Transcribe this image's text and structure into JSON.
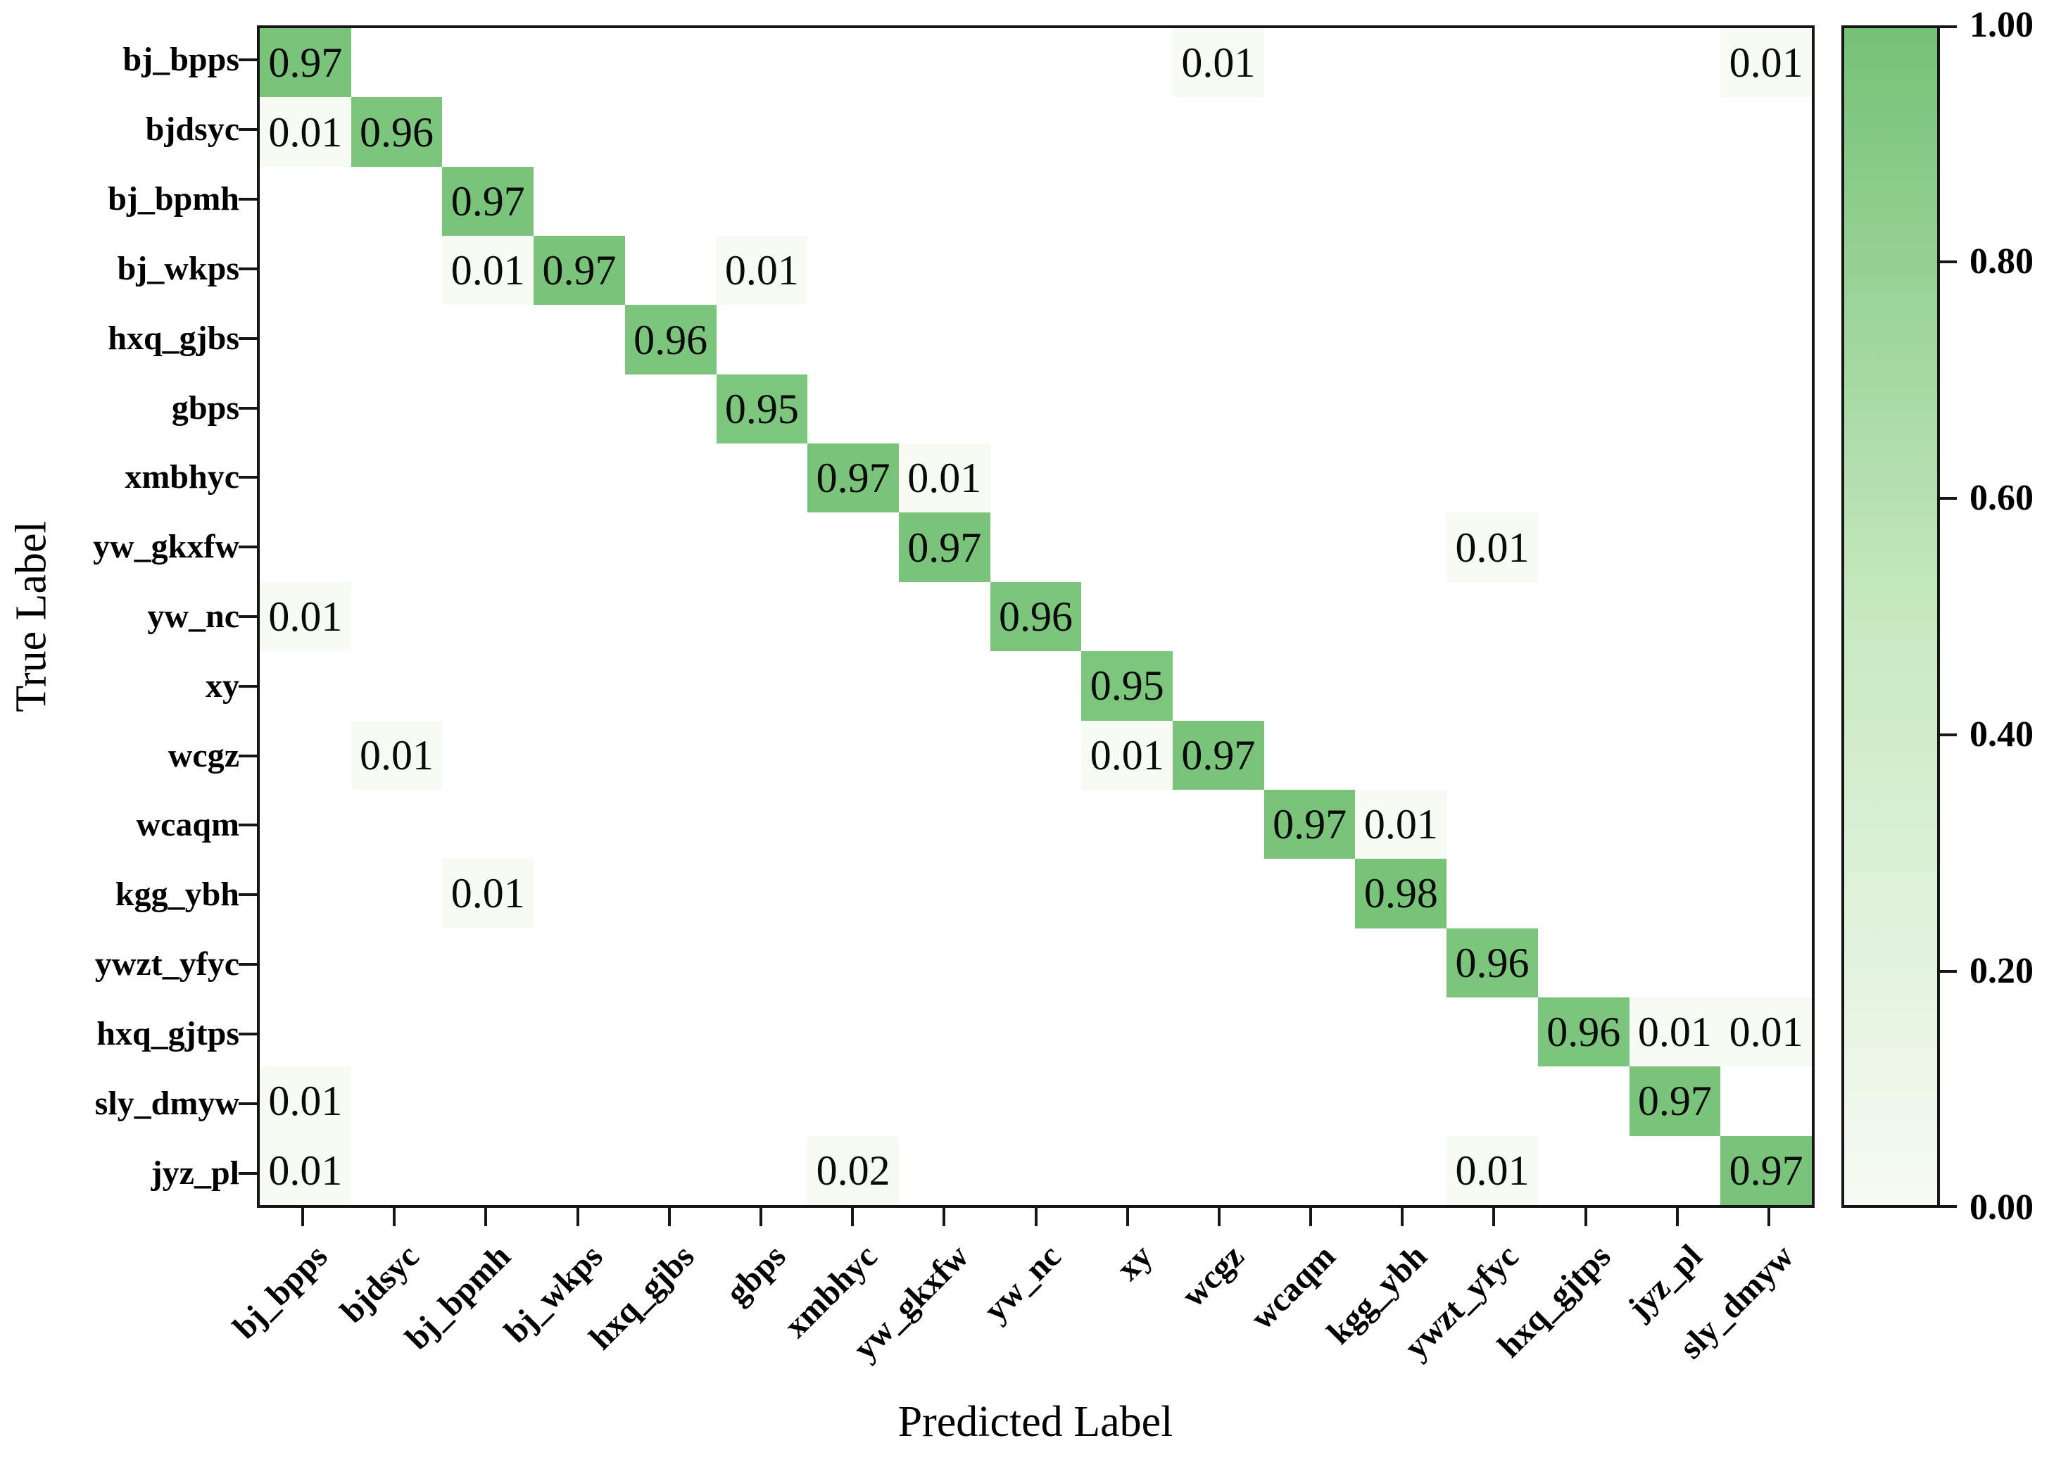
{
  "chart_data": {
    "type": "heatmap",
    "title": "",
    "xlabel": "Predicted Label",
    "ylabel": "True Label",
    "x_labels": [
      "bj_bpps",
      "bjdsyc",
      "bj_bpmh",
      "bj_wkps",
      "hxq_gjbs",
      "gbps",
      "xmbhyc",
      "yw_gkxfw",
      "yw_nc",
      "xy",
      "wcgz",
      "wcaqm",
      "kgg_ybh",
      "ywzt_yfyc",
      "hxq_gjtps",
      "jyz_pl",
      "sly_dmyw"
    ],
    "y_labels": [
      "bj_bpps",
      "bjdsyc",
      "bj_bpmh",
      "bj_wkps",
      "hxq_gjbs",
      "gbps",
      "xmbhyc",
      "yw_gkxfw",
      "yw_nc",
      "xy",
      "wcgz",
      "wcaqm",
      "kgg_ybh",
      "ywzt_yfyc",
      "hxq_gjtps",
      "sly_dmyw",
      "jyz_pl"
    ],
    "default_value": 0,
    "grid": false,
    "legend_position": "right-colorbar",
    "colorbar": {
      "tick_labels": [
        "1.00",
        "0.80",
        "0.60",
        "0.40",
        "0.20",
        "0.00"
      ],
      "tick_values": [
        1.0,
        0.8,
        0.6,
        0.4,
        0.2,
        0.0
      ],
      "range": [
        0,
        1
      ],
      "color_low": "#f7fcf4",
      "color_mid": "#c7e9c0",
      "color_high": "#74c276"
    },
    "cells": [
      {
        "row": 0,
        "col": 0,
        "true": "bj_bpps",
        "predicted": "bj_bpps",
        "value": 0.97
      },
      {
        "row": 0,
        "col": 10,
        "true": "bj_bpps",
        "predicted": "wcgz",
        "value": 0.01
      },
      {
        "row": 0,
        "col": 16,
        "true": "bj_bpps",
        "predicted": "sly_dmyw",
        "value": 0.01
      },
      {
        "row": 1,
        "col": 0,
        "true": "bjdsyc",
        "predicted": "bj_bpps",
        "value": 0.01
      },
      {
        "row": 1,
        "col": 1,
        "true": "bjdsyc",
        "predicted": "bjdsyc",
        "value": 0.96
      },
      {
        "row": 2,
        "col": 2,
        "true": "bj_bpmh",
        "predicted": "bj_bpmh",
        "value": 0.97
      },
      {
        "row": 3,
        "col": 2,
        "true": "bj_wkps",
        "predicted": "bj_bpmh",
        "value": 0.01
      },
      {
        "row": 3,
        "col": 3,
        "true": "bj_wkps",
        "predicted": "bj_wkps",
        "value": 0.97
      },
      {
        "row": 3,
        "col": 5,
        "true": "bj_wkps",
        "predicted": "gbps",
        "value": 0.01
      },
      {
        "row": 4,
        "col": 4,
        "true": "hxq_gjbs",
        "predicted": "hxq_gjbs",
        "value": 0.96
      },
      {
        "row": 5,
        "col": 5,
        "true": "gbps",
        "predicted": "gbps",
        "value": 0.95
      },
      {
        "row": 6,
        "col": 6,
        "true": "xmbhyc",
        "predicted": "xmbhyc",
        "value": 0.97
      },
      {
        "row": 6,
        "col": 7,
        "true": "xmbhyc",
        "predicted": "yw_gkxfw",
        "value": 0.01
      },
      {
        "row": 7,
        "col": 7,
        "true": "yw_gkxfw",
        "predicted": "yw_gkxfw",
        "value": 0.97
      },
      {
        "row": 7,
        "col": 13,
        "true": "yw_gkxfw",
        "predicted": "ywzt_yfyc",
        "value": 0.01
      },
      {
        "row": 8,
        "col": 0,
        "true": "yw_nc",
        "predicted": "bj_bpps",
        "value": 0.01
      },
      {
        "row": 8,
        "col": 8,
        "true": "yw_nc",
        "predicted": "yw_nc",
        "value": 0.96
      },
      {
        "row": 9,
        "col": 9,
        "true": "xy",
        "predicted": "xy",
        "value": 0.95
      },
      {
        "row": 10,
        "col": 1,
        "true": "wcgz",
        "predicted": "bjdsyc",
        "value": 0.01
      },
      {
        "row": 10,
        "col": 9,
        "true": "wcgz",
        "predicted": "xy",
        "value": 0.01
      },
      {
        "row": 10,
        "col": 10,
        "true": "wcgz",
        "predicted": "wcgz",
        "value": 0.97
      },
      {
        "row": 11,
        "col": 11,
        "true": "wcaqm",
        "predicted": "wcaqm",
        "value": 0.97
      },
      {
        "row": 11,
        "col": 12,
        "true": "wcaqm",
        "predicted": "kgg_ybh",
        "value": 0.01
      },
      {
        "row": 12,
        "col": 2,
        "true": "kgg_ybh",
        "predicted": "bj_bpmh",
        "value": 0.01
      },
      {
        "row": 12,
        "col": 12,
        "true": "kgg_ybh",
        "predicted": "kgg_ybh",
        "value": 0.98
      },
      {
        "row": 13,
        "col": 13,
        "true": "ywzt_yfyc",
        "predicted": "ywzt_yfyc",
        "value": 0.96
      },
      {
        "row": 14,
        "col": 14,
        "true": "hxq_gjtps",
        "predicted": "hxq_gjtps",
        "value": 0.96
      },
      {
        "row": 14,
        "col": 15,
        "true": "hxq_gjtps",
        "predicted": "jyz_pl",
        "value": 0.01
      },
      {
        "row": 14,
        "col": 16,
        "true": "hxq_gjtps",
        "predicted": "sly_dmyw",
        "value": 0.01
      },
      {
        "row": 15,
        "col": 0,
        "true": "sly_dmyw",
        "predicted": "bj_bpps",
        "value": 0.01
      },
      {
        "row": 15,
        "col": 15,
        "true": "sly_dmyw",
        "predicted": "jyz_pl",
        "value": 0.97
      },
      {
        "row": 16,
        "col": 0,
        "true": "jyz_pl",
        "predicted": "bj_bpps",
        "value": 0.01
      },
      {
        "row": 16,
        "col": 6,
        "true": "jyz_pl",
        "predicted": "xmbhyc",
        "value": 0.02
      },
      {
        "row": 16,
        "col": 13,
        "true": "jyz_pl",
        "predicted": "ywzt_yfyc",
        "value": 0.01
      },
      {
        "row": 16,
        "col": 16,
        "true": "jyz_pl",
        "predicted": "sly_dmyw",
        "value": 0.97
      }
    ]
  }
}
